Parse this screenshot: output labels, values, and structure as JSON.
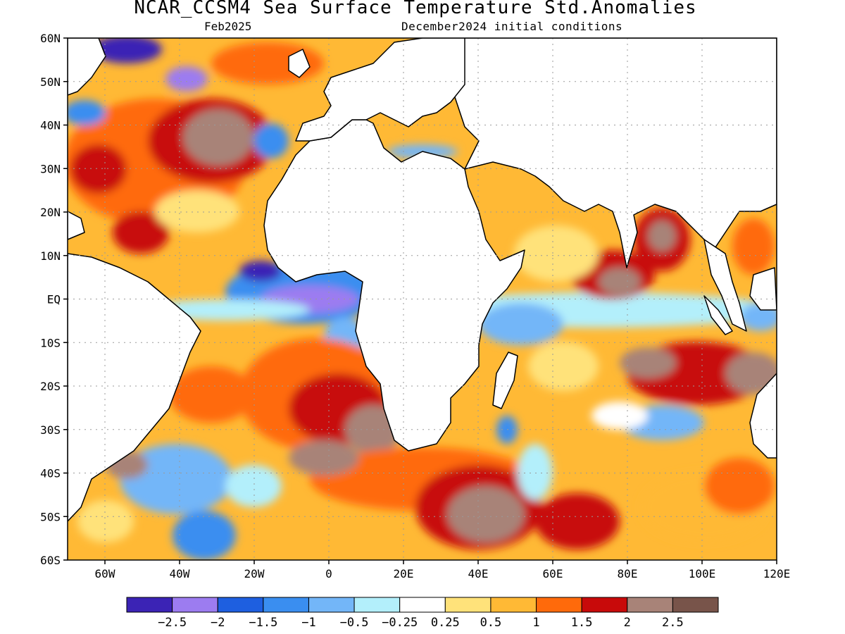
{
  "title": "NCAR_CCSM4 Sea Surface Temperature Std.Anomalies",
  "subtitle_left": "Feb2025",
  "subtitle_right": "December2024 initial conditions",
  "map": {
    "lon_range": [
      -70,
      120
    ],
    "lat_range": [
      -60,
      60
    ],
    "lat_labels": [
      "60N",
      "50N",
      "40N",
      "30N",
      "20N",
      "10N",
      "EQ",
      "10S",
      "20S",
      "30S",
      "40S",
      "50S",
      "60S"
    ],
    "lon_labels": [
      "60W",
      "40W",
      "20W",
      "0",
      "20E",
      "40E",
      "60E",
      "80E",
      "100E",
      "120E"
    ],
    "land_color": "#ffffff"
  },
  "colorbar": {
    "labels": [
      "-2.5",
      "-2",
      "-1.5",
      "-1",
      "-0.5",
      "-0.25",
      "0.25",
      "0.5",
      "1",
      "1.5",
      "2",
      "2.5"
    ],
    "colors": [
      "#3b23b5",
      "#9c7cf0",
      "#1e5fe0",
      "#3a8ef0",
      "#73b6f8",
      "#b3effb",
      "#ffffff",
      "#ffe27a",
      "#ffb935",
      "#ff6a0b",
      "#c80a0a",
      "#a88378",
      "#78544a"
    ]
  },
  "anomaly_colors": {
    "strong_neg": "#3b23b5",
    "neg2": "#9c7cf0",
    "neg15": "#1e5fe0",
    "neg1": "#3a8ef0",
    "neg05": "#73b6f8",
    "neg025": "#b3effb",
    "neutral": "#ffffff",
    "pos025": "#ffe27a",
    "pos05": "#ffb935",
    "pos1": "#ff6a0b",
    "pos15": "#c80a0a",
    "pos2": "#a88378",
    "pos25": "#78544a"
  }
}
